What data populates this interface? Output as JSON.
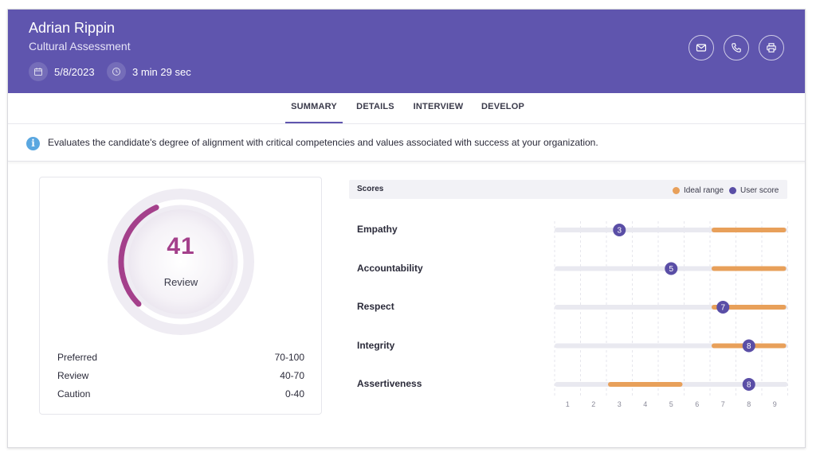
{
  "header": {
    "candidate_name": "Adrian Rippin",
    "assessment_type": "Cultural Assessment",
    "date": "5/8/2023",
    "duration": "3 min 29 sec",
    "background_color": "#5f55ae"
  },
  "actions": {
    "email_icon": "envelope-icon",
    "phone_icon": "phone-icon",
    "print_icon": "printer-icon"
  },
  "tabs": [
    {
      "label": "SUMMARY",
      "active": true
    },
    {
      "label": "DETAILS",
      "active": false
    },
    {
      "label": "INTERVIEW",
      "active": false
    },
    {
      "label": "DEVELOP",
      "active": false
    }
  ],
  "info": {
    "icon": "info-icon",
    "text": "Evaluates the candidate's degree of alignment with critical competencies and values associated with success at your organization."
  },
  "overall": {
    "score": "41",
    "score_value": 41,
    "score_max": 100,
    "band_label": "Review",
    "arc_color": "#a4408b",
    "bands": [
      {
        "label": "Preferred",
        "range": "70-100"
      },
      {
        "label": "Review",
        "range": "40-70"
      },
      {
        "label": "Caution",
        "range": "0-40"
      }
    ]
  },
  "scores": {
    "title": "Scores",
    "legend": [
      {
        "label": "Ideal range",
        "color": "#e8a05a"
      },
      {
        "label": "User score",
        "color": "#5a4ea6"
      }
    ],
    "scale": [
      1,
      2,
      3,
      4,
      5,
      6,
      7,
      8,
      9
    ],
    "competencies": [
      {
        "name": "Empathy",
        "score": 3,
        "ideal_min": 7,
        "ideal_max": 9
      },
      {
        "name": "Accountability",
        "score": 5,
        "ideal_min": 7,
        "ideal_max": 9
      },
      {
        "name": "Respect",
        "score": 7,
        "ideal_min": 7,
        "ideal_max": 9
      },
      {
        "name": "Integrity",
        "score": 8,
        "ideal_min": 7,
        "ideal_max": 9
      },
      {
        "name": "Assertiveness",
        "score": 8,
        "ideal_min": 3,
        "ideal_max": 5
      }
    ]
  }
}
